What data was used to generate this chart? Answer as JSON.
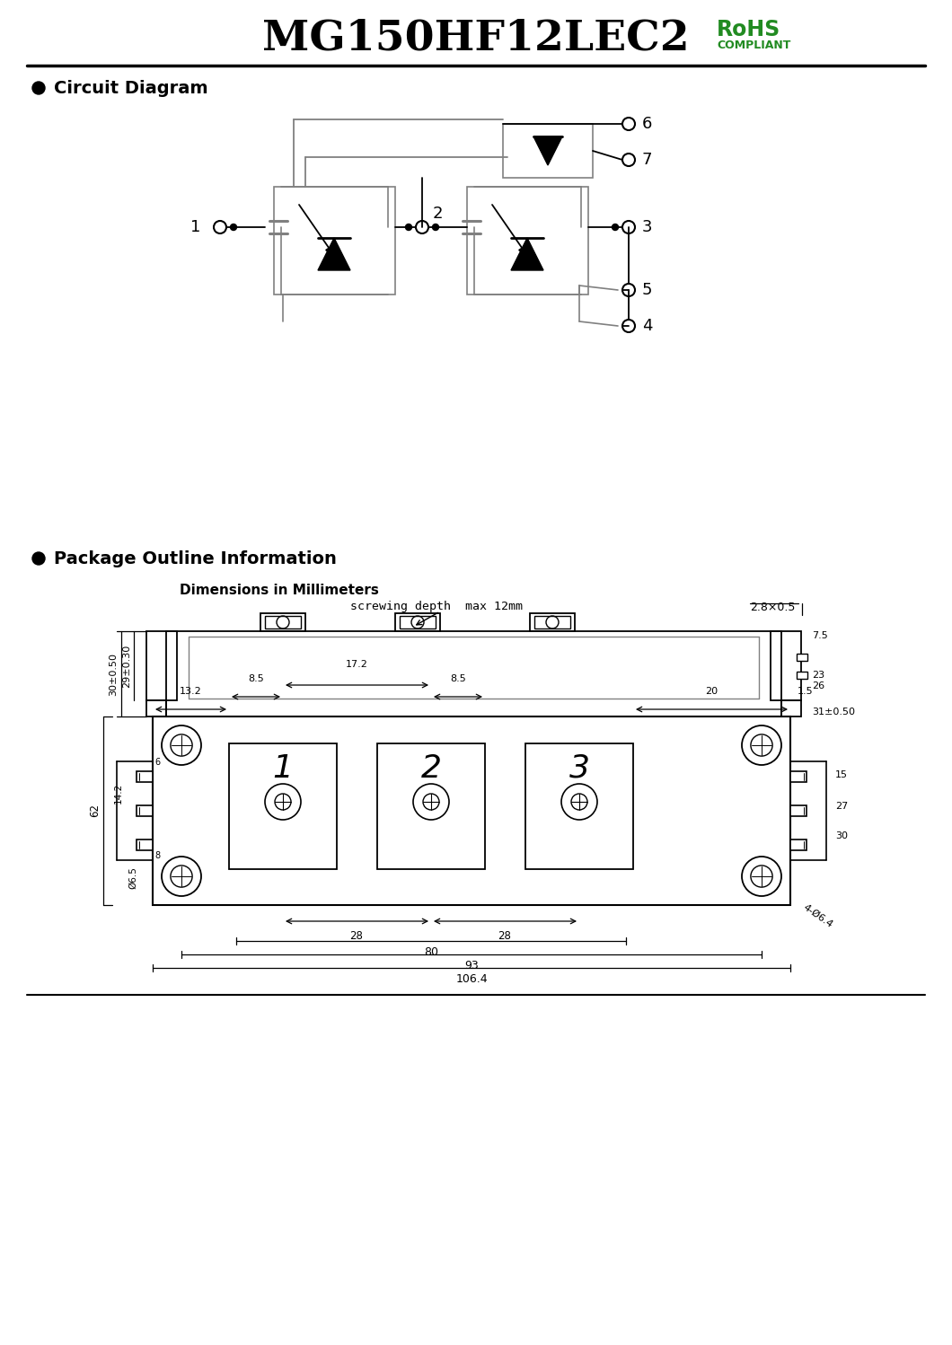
{
  "title": "MG150HF12LEC2",
  "rohs_text": "RoHS",
  "compliant_text": "COMPLIANT",
  "section1": "Circuit Diagram",
  "section2": "Package Outline Information",
  "dim_label": "Dimensions in Millimeters",
  "screw_label": "screwing depth  max 12mm",
  "dim_28x05": "2.8×0.5",
  "side_dims_left": [
    "30±0.50",
    "29±0.30"
  ],
  "side_dims_right": [
    "7.5",
    "23",
    "26",
    "31±0.50"
  ],
  "right_dims": [
    "15",
    "27",
    "30"
  ],
  "node_labels": [
    "1",
    "2",
    "3",
    "4",
    "5",
    "6",
    "7"
  ],
  "bg_color": "#ffffff",
  "line_color": "#000000",
  "gray_color": "#808080",
  "green_color": "#228B22"
}
